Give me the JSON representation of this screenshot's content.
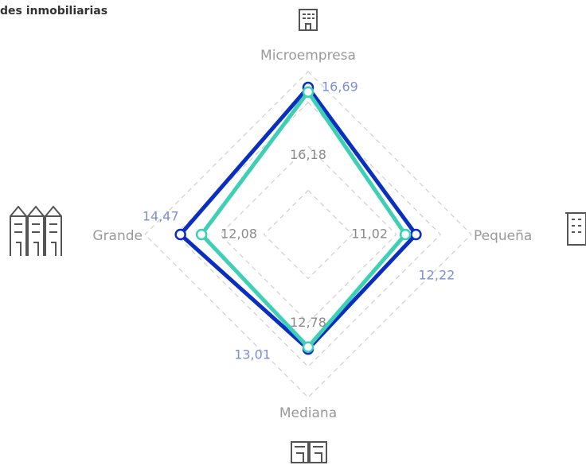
{
  "chart_data": {
    "type": "radar",
    "title": "des inmobiliarias",
    "categories": [
      "Microempresa",
      "Pequeña",
      "Mediana",
      "Grande"
    ],
    "rlim": [
      0,
      18.5
    ],
    "rticks": [
      5,
      10,
      15
    ],
    "grid": true,
    "series": [
      {
        "color": "#0a2fc0",
        "label_color": "#7b8fd6",
        "values": [
          16.69,
          12.22,
          13.01,
          14.47
        ],
        "value_labels": [
          "16,69",
          "12,22",
          "13,01",
          "14,47"
        ]
      },
      {
        "color": "#3ed0b5",
        "label_color": "#8a8a8a",
        "values": [
          16.18,
          11.02,
          12.78,
          12.08
        ],
        "value_labels": [
          "16,18",
          "11,02",
          "12,78",
          "12,08"
        ]
      }
    ]
  }
}
